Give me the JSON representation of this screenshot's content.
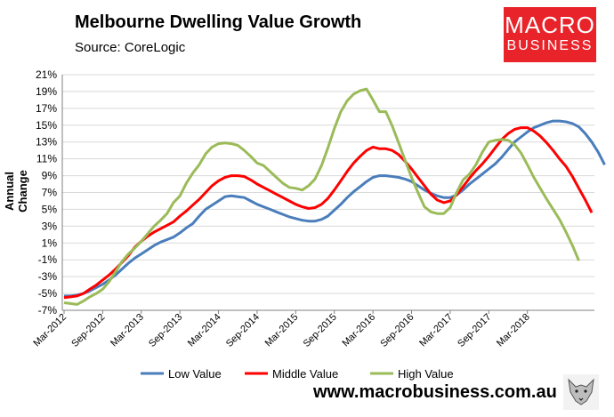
{
  "chart_data": {
    "type": "line",
    "title": "Melbourne Dwelling Value Growth",
    "subtitle": "Source: CoreLogic",
    "xlabel": "",
    "ylabel": "Annual Change",
    "ylim": [
      -7,
      21
    ],
    "yticks": [
      "21%",
      "19%",
      "17%",
      "15%",
      "13%",
      "11%",
      "9%",
      "7%",
      "5%",
      "3%",
      "1%",
      "-1%",
      "-3%",
      "-5%",
      "-7%"
    ],
    "xticks": [
      "Mar-2012",
      "Sep-2012",
      "Mar-2013",
      "Sep-2013",
      "Mar-2014",
      "Sep-2014",
      "Mar-2015",
      "Sep-2015",
      "Mar-2016",
      "Sep-2016",
      "Mar-2017",
      "Sep-2017",
      "Mar-2018"
    ],
    "x_start": "Mar-2012",
    "x_unit": "months",
    "grid": "horizontal",
    "legend_position": "bottom",
    "series": [
      {
        "name": "Low Value",
        "color": "#4a7ebb",
        "values": [
          -5.3,
          -5.3,
          -5.2,
          -5.0,
          -4.7,
          -4.3,
          -3.9,
          -3.4,
          -2.8,
          -2.1,
          -1.4,
          -0.8,
          -0.3,
          0.2,
          0.7,
          1.1,
          1.4,
          1.7,
          2.2,
          2.8,
          3.3,
          4.2,
          5.0,
          5.5,
          6.0,
          6.5,
          6.6,
          6.5,
          6.4,
          6.0,
          5.6,
          5.3,
          5.0,
          4.7,
          4.4,
          4.1,
          3.9,
          3.7,
          3.6,
          3.6,
          3.8,
          4.2,
          4.9,
          5.6,
          6.4,
          7.1,
          7.7,
          8.3,
          8.8,
          9.0,
          9.0,
          8.9,
          8.8,
          8.6,
          8.3,
          7.8,
          7.3,
          6.9,
          6.6,
          6.4,
          6.4,
          6.7,
          7.3,
          8.0,
          8.6,
          9.2,
          9.8,
          10.4,
          11.2,
          12.1,
          13.0,
          13.6,
          14.2,
          14.7,
          15.0,
          15.3,
          15.5,
          15.5,
          15.4,
          15.2,
          14.8,
          14.0,
          13.0,
          11.8,
          10.3
        ]
      },
      {
        "name": "Middle Value",
        "color": "#ff0000",
        "values": [
          -5.5,
          -5.4,
          -5.3,
          -5.0,
          -4.5,
          -4.0,
          -3.4,
          -2.8,
          -2.1,
          -1.3,
          -0.5,
          0.5,
          1.2,
          1.8,
          2.3,
          2.7,
          3.1,
          3.5,
          4.2,
          4.8,
          5.5,
          6.2,
          7.0,
          7.8,
          8.4,
          8.8,
          9.0,
          9.0,
          8.9,
          8.5,
          8.0,
          7.6,
          7.2,
          6.8,
          6.4,
          6.0,
          5.6,
          5.3,
          5.1,
          5.2,
          5.6,
          6.3,
          7.3,
          8.4,
          9.5,
          10.5,
          11.3,
          12.0,
          12.4,
          12.2,
          12.2,
          12.0,
          11.5,
          10.7,
          9.8,
          8.8,
          7.8,
          6.8,
          6.1,
          5.8,
          6.0,
          6.7,
          7.7,
          8.7,
          9.6,
          10.4,
          11.3,
          12.3,
          13.3,
          14.0,
          14.5,
          14.7,
          14.7,
          14.3,
          13.7,
          12.9,
          12.0,
          11.0,
          10.1,
          8.9,
          7.5,
          6.1,
          4.6
        ]
      },
      {
        "name": "High Value",
        "color": "#9bbb59",
        "values": [
          -6.1,
          -6.2,
          -6.3,
          -5.9,
          -5.4,
          -5.0,
          -4.5,
          -3.6,
          -2.4,
          -1.2,
          -0.3,
          0.4,
          1.2,
          2.1,
          3.0,
          3.7,
          4.5,
          5.8,
          6.6,
          8.1,
          9.3,
          10.3,
          11.6,
          12.4,
          12.8,
          12.9,
          12.8,
          12.6,
          12.0,
          11.3,
          10.5,
          10.2,
          9.5,
          8.8,
          8.1,
          7.6,
          7.5,
          7.3,
          7.8,
          8.6,
          10.2,
          12.3,
          14.6,
          16.6,
          17.9,
          18.7,
          19.1,
          19.3,
          18.0,
          16.6,
          16.6,
          14.9,
          12.9,
          10.8,
          8.8,
          7.0,
          5.3,
          4.7,
          4.5,
          4.5,
          5.2,
          7.0,
          8.5,
          9.2,
          10.3,
          11.8,
          13.0,
          13.2,
          13.3,
          13.2,
          12.7,
          11.7,
          10.3,
          8.8,
          7.5,
          6.2,
          5.0,
          3.8,
          2.3,
          0.7,
          -1.1
        ]
      }
    ]
  },
  "brand": {
    "logo_line1": "MACRO",
    "logo_line2": "BUSINESS",
    "logo_color": "#e8232a",
    "website": "www.macrobusiness.com.au"
  },
  "fox_icon": "fox-illustration-icon"
}
